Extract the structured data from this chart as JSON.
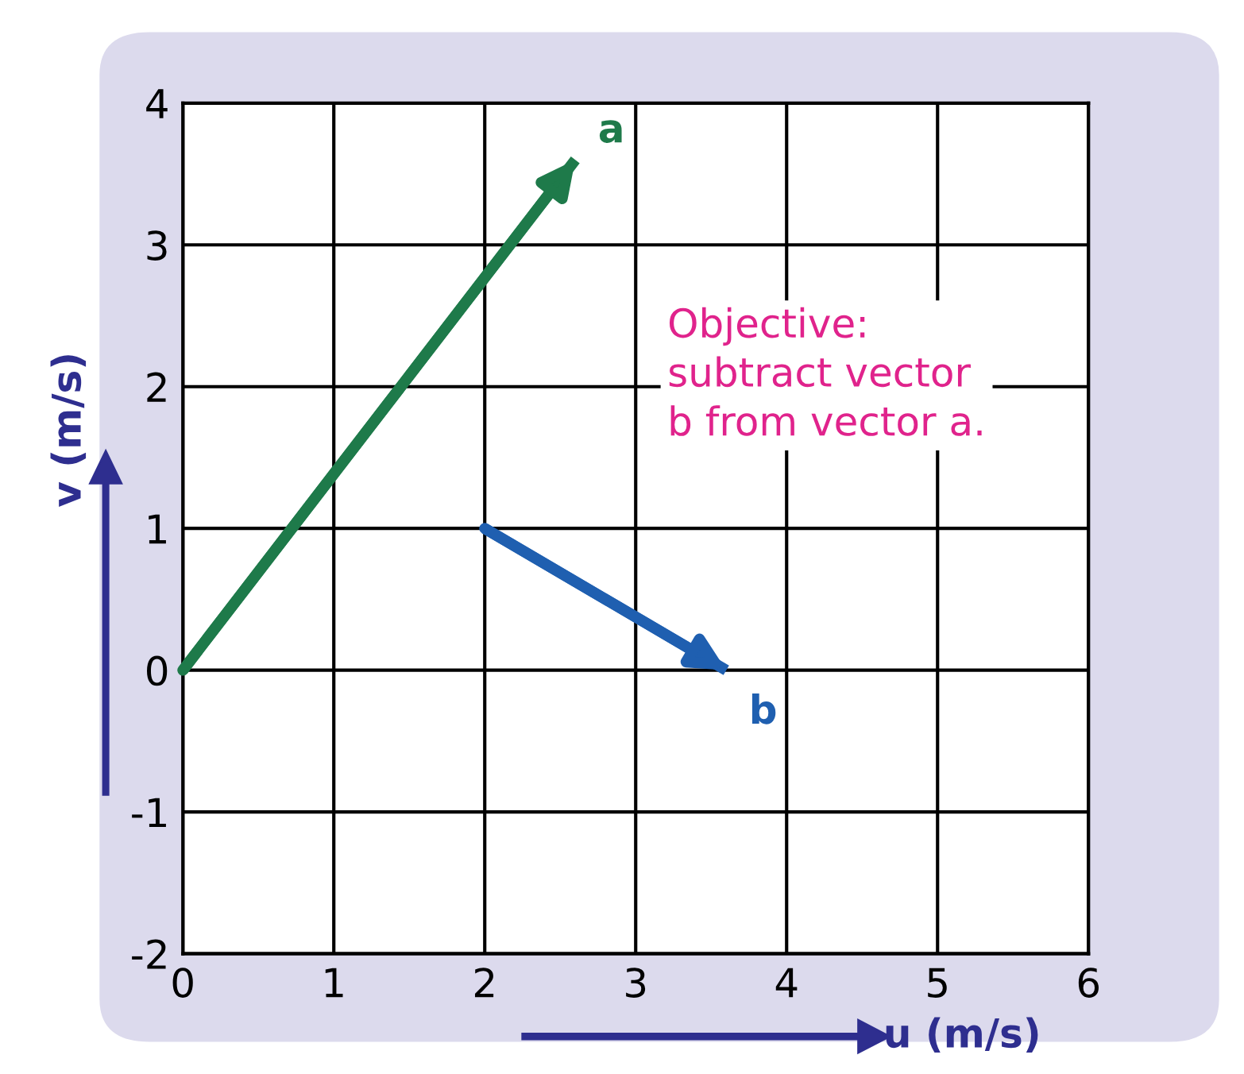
{
  "chart_data": {
    "type": "line",
    "xlabel": "u (m/s)",
    "ylabel": "v (m/s)",
    "xlim": [
      0,
      6
    ],
    "ylim": [
      -2,
      4
    ],
    "xticks": [
      0,
      1,
      2,
      3,
      4,
      5,
      6
    ],
    "yticks": [
      -2,
      -1,
      0,
      1,
      2,
      3,
      4
    ],
    "grid": true,
    "legend": false,
    "marker": "none",
    "line_style": "solid",
    "series": [
      {
        "name": "a",
        "color": "#1e7a4a",
        "x": [
          0,
          2.6
        ],
        "values": [
          0,
          3.6
        ]
      },
      {
        "name": "b",
        "color": "#1f5fb0",
        "x": [
          2,
          3.6
        ],
        "values": [
          1,
          0
        ]
      }
    ],
    "annotations": [
      "Objective:\nsubtract vector\nb from vector a."
    ]
  }
}
